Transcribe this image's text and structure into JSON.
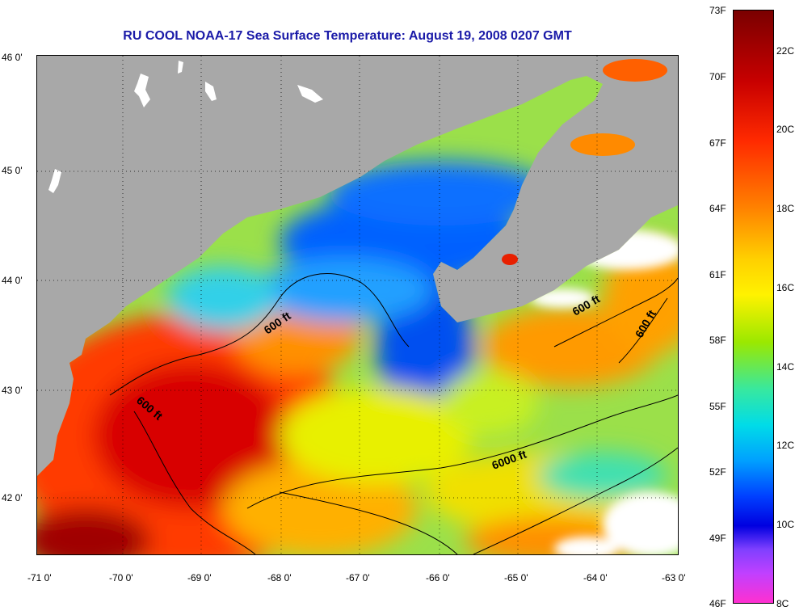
{
  "title": "RU COOL  NOAA-17  Sea Surface Temperature:  August 19, 2008 0207 GMT",
  "latitude_ticks": [
    "46 0'",
    "45 0'",
    "44 0'",
    "43 0'",
    "42 0'"
  ],
  "longitude_ticks": [
    "-71 0'",
    "-70 0'",
    "-69 0'",
    "-68 0'",
    "-67 0'",
    "-66 0'",
    "-65 0'",
    "-64 0'",
    "-63 0'"
  ],
  "colorbar": {
    "fahrenheit": [
      "73F",
      "70F",
      "67F",
      "64F",
      "61F",
      "58F",
      "55F",
      "52F",
      "49F",
      "46F"
    ],
    "celsius": [
      "22C",
      "20C",
      "18C",
      "16C",
      "14C",
      "12C",
      "10C",
      "8C"
    ]
  },
  "contour_labels": [
    "600 ft",
    "600 ft",
    "600 ft",
    "600 ft",
    "6000 ft"
  ],
  "colors": {
    "title": "#1a1aa8",
    "land": "#a8a8a8",
    "clouds": "#ffffff"
  }
}
